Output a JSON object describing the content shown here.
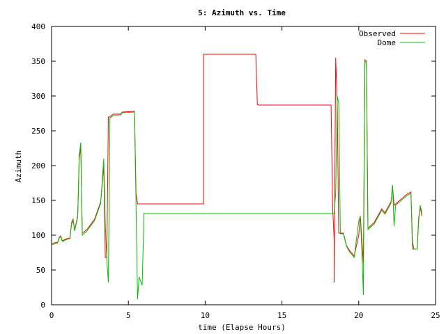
{
  "chart_data": {
    "type": "line",
    "title": "5: Azimuth vs. Time",
    "xlabel": "time (Elapse Hours)",
    "ylabel": "Azimuth",
    "xlim": [
      0,
      25
    ],
    "ylim": [
      0,
      400
    ],
    "xticks": [
      0,
      5,
      10,
      15,
      20,
      25
    ],
    "yticks": [
      0,
      50,
      100,
      150,
      200,
      250,
      300,
      350,
      400
    ],
    "grid": false,
    "legend_position": "top-right",
    "series": [
      {
        "name": "Observed",
        "color": "#ff0000",
        "points": [
          [
            0.0,
            88
          ],
          [
            0.4,
            90
          ],
          [
            0.5,
            97
          ],
          [
            0.6,
            99
          ],
          [
            0.7,
            92
          ],
          [
            1.0,
            95
          ],
          [
            1.2,
            96
          ],
          [
            1.3,
            118
          ],
          [
            1.4,
            123
          ],
          [
            1.5,
            107
          ],
          [
            1.7,
            128
          ],
          [
            1.8,
            210
          ],
          [
            1.9,
            226
          ],
          [
            2.0,
            103
          ],
          [
            2.3,
            108
          ],
          [
            2.8,
            123
          ],
          [
            3.2,
            148
          ],
          [
            3.4,
            200
          ],
          [
            3.5,
            68
          ],
          [
            3.6,
            68
          ],
          [
            3.7,
            270
          ],
          [
            3.8,
            270
          ],
          [
            4.0,
            274
          ],
          [
            4.5,
            274
          ],
          [
            4.6,
            277
          ],
          [
            5.4,
            278
          ],
          [
            5.5,
            160
          ],
          [
            5.6,
            145
          ],
          [
            5.9,
            145
          ],
          [
            6.0,
            145
          ],
          [
            9.9,
            145
          ],
          [
            9.9,
            360
          ],
          [
            13.3,
            360
          ],
          [
            13.4,
            288
          ],
          [
            13.5,
            287
          ],
          [
            18.2,
            287
          ],
          [
            18.3,
            140
          ],
          [
            18.4,
            95
          ],
          [
            18.4,
            32
          ],
          [
            18.5,
            355
          ],
          [
            18.6,
            290
          ],
          [
            18.7,
            103
          ],
          [
            19.0,
            103
          ],
          [
            19.2,
            85
          ],
          [
            19.4,
            78
          ],
          [
            19.7,
            70
          ],
          [
            20.0,
            100
          ],
          [
            20.1,
            128
          ],
          [
            20.2,
            95
          ],
          [
            20.3,
            60
          ],
          [
            20.4,
            352
          ],
          [
            20.5,
            350
          ],
          [
            20.6,
            110
          ],
          [
            21.0,
            118
          ],
          [
            21.3,
            130
          ],
          [
            21.5,
            138
          ],
          [
            21.7,
            132
          ],
          [
            22.1,
            148
          ],
          [
            22.2,
            170
          ],
          [
            22.3,
            143
          ],
          [
            22.4,
            145
          ],
          [
            23.2,
            160
          ],
          [
            23.4,
            162
          ],
          [
            23.5,
            90
          ],
          [
            23.6,
            80
          ],
          [
            23.8,
            80
          ],
          [
            23.9,
            125
          ],
          [
            24.0,
            140
          ],
          [
            24.1,
            128
          ]
        ]
      },
      {
        "name": "Dome",
        "color": "#00c000",
        "points": [
          [
            0.0,
            86
          ],
          [
            0.4,
            89
          ],
          [
            0.5,
            96
          ],
          [
            0.6,
            98
          ],
          [
            0.7,
            91
          ],
          [
            1.0,
            94
          ],
          [
            1.2,
            95
          ],
          [
            1.3,
            116
          ],
          [
            1.4,
            121
          ],
          [
            1.5,
            106
          ],
          [
            1.7,
            126
          ],
          [
            1.8,
            215
          ],
          [
            1.9,
            233
          ],
          [
            2.0,
            100
          ],
          [
            2.3,
            106
          ],
          [
            2.8,
            121
          ],
          [
            3.2,
            146
          ],
          [
            3.4,
            210
          ],
          [
            3.5,
            115
          ],
          [
            3.6,
            65
          ],
          [
            3.7,
            32
          ],
          [
            3.8,
            268
          ],
          [
            4.0,
            272
          ],
          [
            4.5,
            273
          ],
          [
            4.6,
            276
          ],
          [
            5.4,
            277
          ],
          [
            5.5,
            145
          ],
          [
            5.6,
            8
          ],
          [
            5.7,
            40
          ],
          [
            5.9,
            28
          ],
          [
            6.0,
            112
          ],
          [
            6.0,
            131
          ],
          [
            18.4,
            131
          ],
          [
            18.5,
            160
          ],
          [
            18.6,
            300
          ],
          [
            18.7,
            290
          ],
          [
            18.8,
            102
          ],
          [
            19.0,
            102
          ],
          [
            19.2,
            84
          ],
          [
            19.4,
            76
          ],
          [
            19.7,
            68
          ],
          [
            20.0,
            120
          ],
          [
            20.1,
            127
          ],
          [
            20.2,
            80
          ],
          [
            20.3,
            14
          ],
          [
            20.4,
            350
          ],
          [
            20.5,
            348
          ],
          [
            20.6,
            108
          ],
          [
            21.0,
            116
          ],
          [
            21.3,
            128
          ],
          [
            21.5,
            136
          ],
          [
            21.7,
            130
          ],
          [
            22.1,
            146
          ],
          [
            22.2,
            172
          ],
          [
            22.3,
            113
          ],
          [
            22.4,
            143
          ],
          [
            23.2,
            158
          ],
          [
            23.4,
            160
          ],
          [
            23.5,
            80
          ],
          [
            23.8,
            80
          ],
          [
            23.9,
            120
          ],
          [
            24.0,
            143
          ],
          [
            24.1,
            133
          ]
        ]
      }
    ]
  }
}
